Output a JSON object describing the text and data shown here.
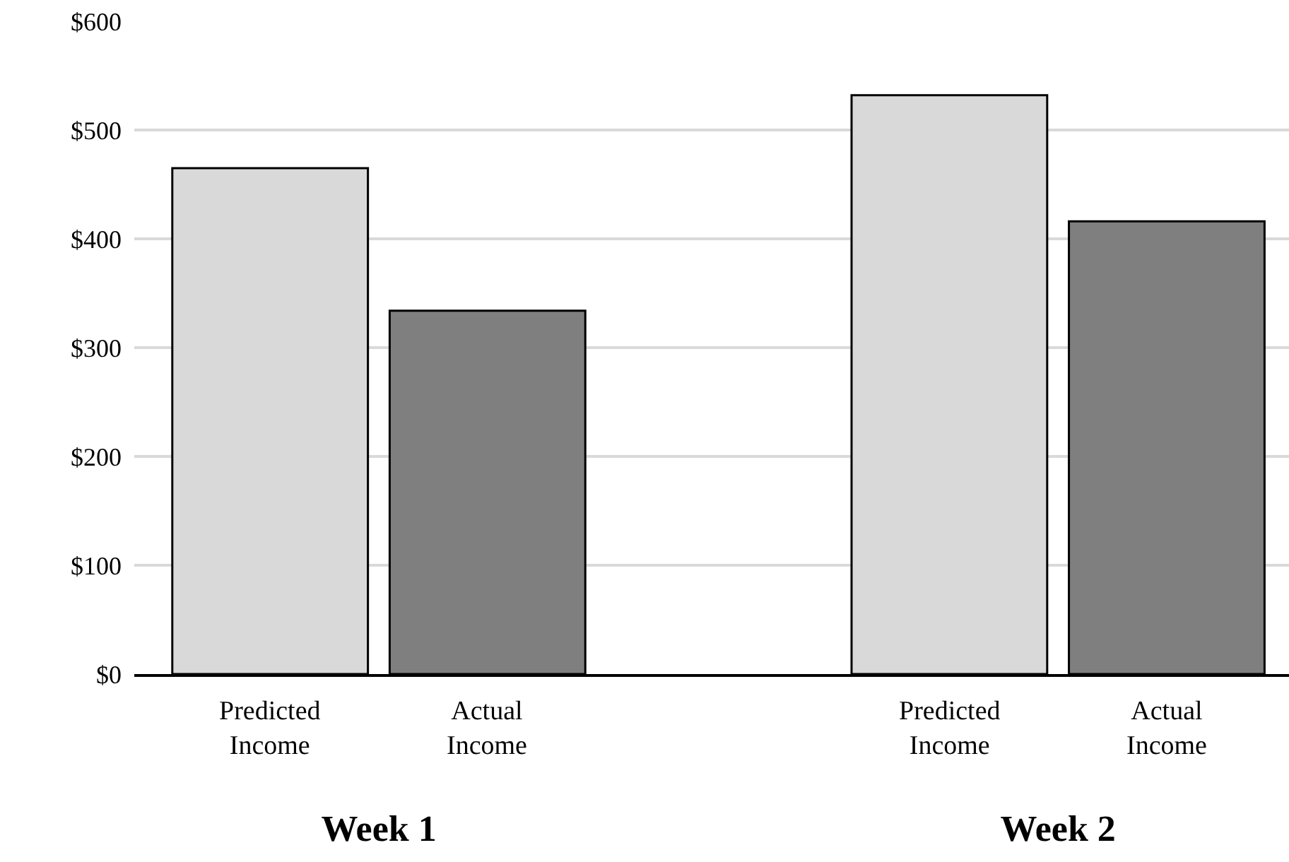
{
  "chart_data": {
    "type": "bar",
    "categories": [
      "Week 1",
      "Week 2"
    ],
    "series": [
      {
        "name": "Predicted Income",
        "color": "#d9d9d9",
        "values": [
          465,
          532
        ]
      },
      {
        "name": "Actual Income",
        "color": "#7f7f7f",
        "values": [
          334,
          416
        ]
      }
    ],
    "ylim": [
      0,
      600
    ],
    "yticks": [
      {
        "value": 0,
        "label": "$0"
      },
      {
        "value": 100,
        "label": "$100"
      },
      {
        "value": 200,
        "label": "$200"
      },
      {
        "value": 300,
        "label": "$300"
      },
      {
        "value": 400,
        "label": "$400"
      },
      {
        "value": 500,
        "label": "$500"
      },
      {
        "value": 600,
        "label": "$600"
      }
    ],
    "grid": "y",
    "legend": false
  }
}
